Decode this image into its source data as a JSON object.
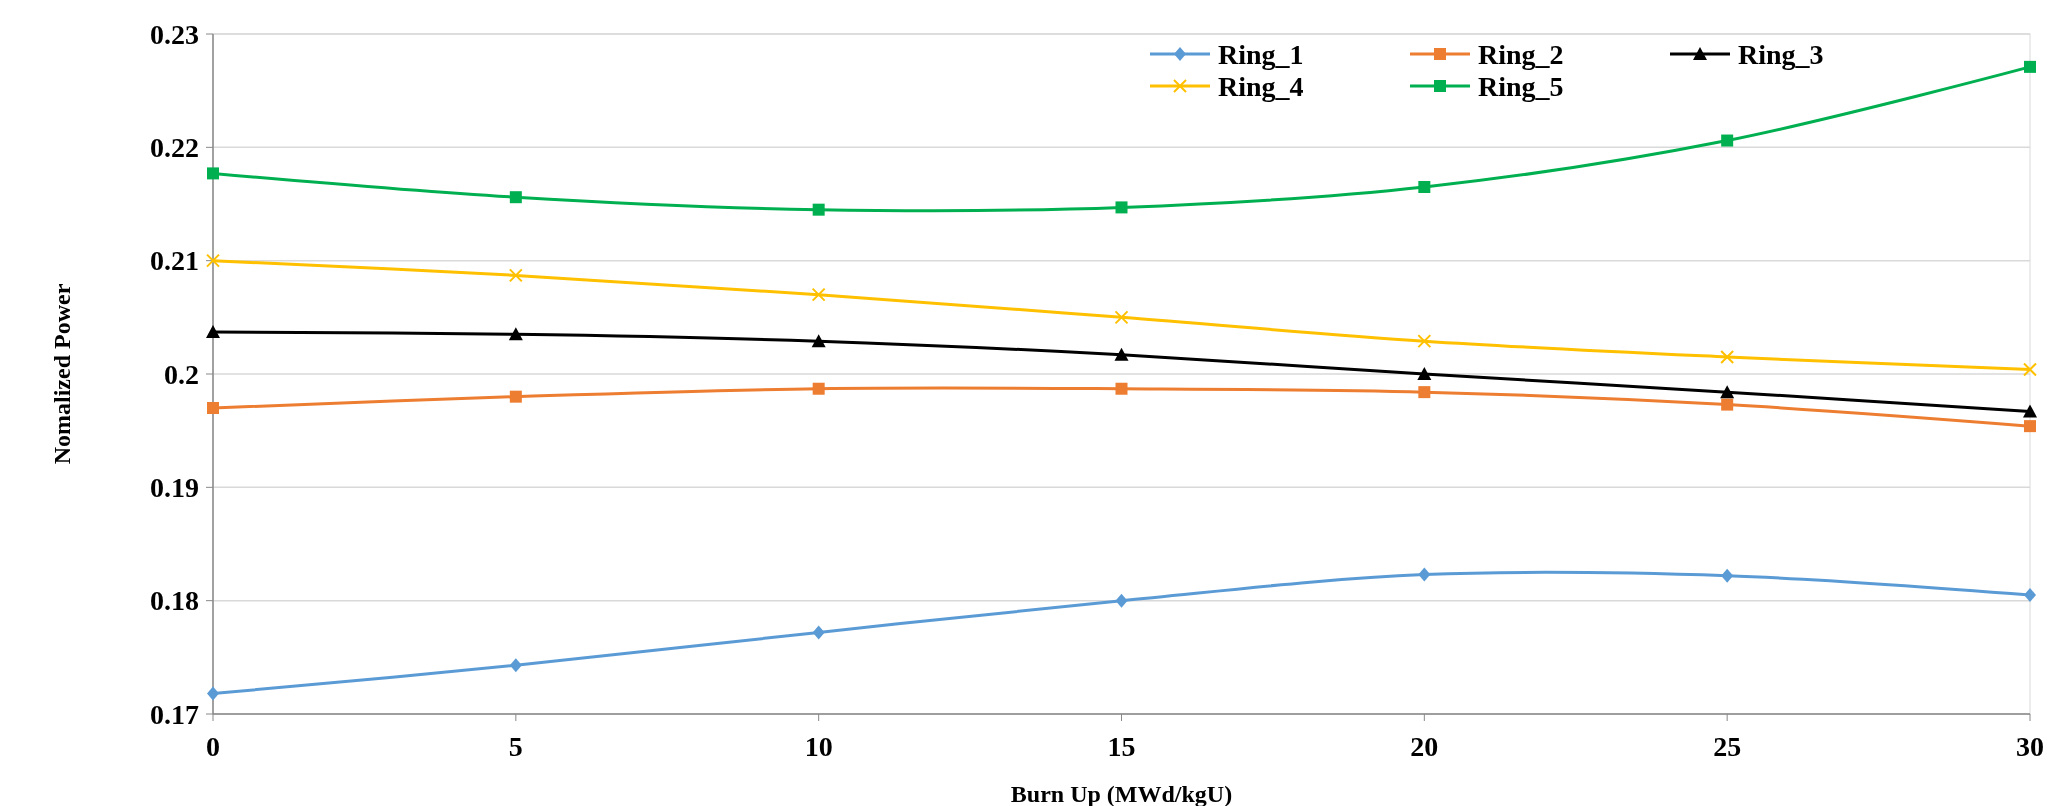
{
  "chart_data": {
    "type": "line",
    "xlabel": "Burn Up (MWd/kgU)",
    "ylabel": "Nomalized Power",
    "x": [
      0,
      5,
      10,
      15,
      20,
      25,
      30
    ],
    "xlim": [
      0,
      30
    ],
    "xticks": [
      0,
      5,
      10,
      15,
      20,
      25,
      30
    ],
    "ylim": [
      0.17,
      0.23
    ],
    "yticks": [
      0.17,
      0.18,
      0.19,
      0.2,
      0.21,
      0.22,
      0.23
    ],
    "grid": "y",
    "legend": "top right",
    "series": [
      {
        "name": "Ring_1",
        "color": "#5b9bd5",
        "marker": "diamond",
        "values": [
          0.1718,
          0.1743,
          0.1772,
          0.18,
          0.1823,
          0.1822,
          0.1805
        ]
      },
      {
        "name": "Ring_2",
        "color": "#ed7d31",
        "marker": "square",
        "values": [
          0.197,
          0.198,
          0.1987,
          0.1987,
          0.1984,
          0.1973,
          0.1954
        ]
      },
      {
        "name": "Ring_3",
        "color": "#000000",
        "marker": "triangle",
        "values": [
          0.2037,
          0.2035,
          0.2029,
          0.2017,
          0.2,
          0.1984,
          0.1967
        ]
      },
      {
        "name": "Ring_4",
        "color": "#ffc000",
        "marker": "cross",
        "values": [
          0.21,
          0.2087,
          0.207,
          0.205,
          0.2029,
          0.2015,
          0.2004
        ]
      },
      {
        "name": "Ring_5",
        "color": "#00b050",
        "marker": "square",
        "values": [
          0.2177,
          0.2156,
          0.2145,
          0.2147,
          0.2165,
          0.2206,
          0.2271
        ]
      }
    ]
  }
}
